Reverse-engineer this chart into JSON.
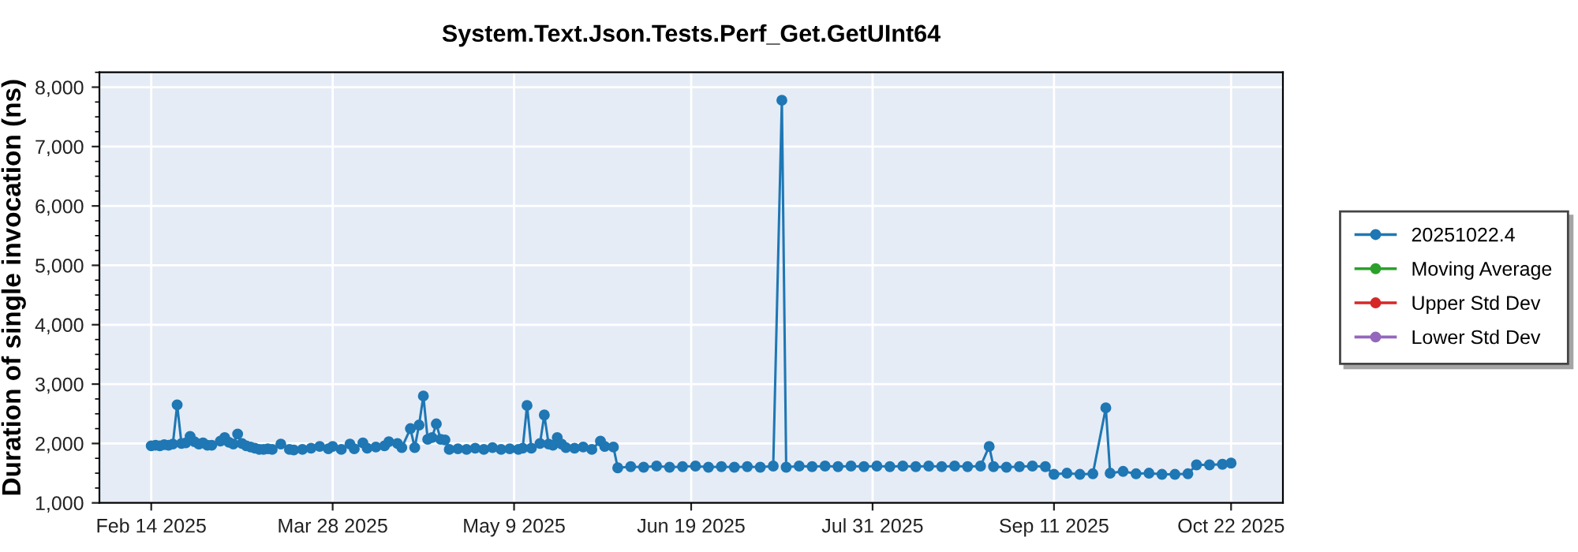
{
  "chart_data": {
    "type": "line",
    "title": "System.Text.Json.Tests.Perf_Get.GetUInt64",
    "ylabel": "Duration of single invocation (ns)",
    "x": [
      "2025-02-14",
      "2025-02-15",
      "2025-02-16",
      "2025-02-17",
      "2025-02-18",
      "2025-02-19",
      "2025-02-20",
      "2025-02-21",
      "2025-02-22",
      "2025-02-23",
      "2025-02-24",
      "2025-02-25",
      "2025-02-26",
      "2025-02-27",
      "2025-02-28",
      "2025-03-02",
      "2025-03-03",
      "2025-03-04",
      "2025-03-05",
      "2025-03-06",
      "2025-03-07",
      "2025-03-08",
      "2025-03-09",
      "2025-03-10",
      "2025-03-11",
      "2025-03-12",
      "2025-03-13",
      "2025-03-14",
      "2025-03-16",
      "2025-03-18",
      "2025-03-19",
      "2025-03-21",
      "2025-03-23",
      "2025-03-25",
      "2025-03-27",
      "2025-03-28",
      "2025-03-30",
      "2025-04-01",
      "2025-04-02",
      "2025-04-04",
      "2025-04-05",
      "2025-04-07",
      "2025-04-09",
      "2025-04-10",
      "2025-04-12",
      "2025-04-13",
      "2025-04-15",
      "2025-04-16",
      "2025-04-17",
      "2025-04-18",
      "2025-04-19",
      "2025-04-20",
      "2025-04-21",
      "2025-04-22",
      "2025-04-23",
      "2025-04-24",
      "2025-04-26",
      "2025-04-28",
      "2025-04-30",
      "2025-05-02",
      "2025-05-04",
      "2025-05-06",
      "2025-05-08",
      "2025-05-10",
      "2025-05-11",
      "2025-05-12",
      "2025-05-13",
      "2025-05-15",
      "2025-05-16",
      "2025-05-17",
      "2025-05-18",
      "2025-05-19",
      "2025-05-20",
      "2025-05-21",
      "2025-05-23",
      "2025-05-25",
      "2025-05-27",
      "2025-05-29",
      "2025-05-30",
      "2025-06-01",
      "2025-06-02",
      "2025-06-05",
      "2025-06-08",
      "2025-06-11",
      "2025-06-14",
      "2025-06-17",
      "2025-06-20",
      "2025-06-23",
      "2025-06-26",
      "2025-06-29",
      "2025-07-02",
      "2025-07-05",
      "2025-07-08",
      "2025-07-10",
      "2025-07-11",
      "2025-07-14",
      "2025-07-17",
      "2025-07-20",
      "2025-07-23",
      "2025-07-26",
      "2025-07-29",
      "2025-08-01",
      "2025-08-04",
      "2025-08-07",
      "2025-08-10",
      "2025-08-13",
      "2025-08-16",
      "2025-08-19",
      "2025-08-22",
      "2025-08-25",
      "2025-08-27",
      "2025-08-28",
      "2025-08-31",
      "2025-09-03",
      "2025-09-06",
      "2025-09-09",
      "2025-09-11",
      "2025-09-14",
      "2025-09-17",
      "2025-09-20",
      "2025-09-23",
      "2025-09-24",
      "2025-09-27",
      "2025-09-30",
      "2025-10-03",
      "2025-10-06",
      "2025-10-09",
      "2025-10-12",
      "2025-10-14",
      "2025-10-17",
      "2025-10-20",
      "2025-10-22"
    ],
    "series": [
      {
        "name": "20251022.4",
        "color": "#1f77b4",
        "values": [
          1960,
          1970,
          1960,
          1980,
          1970,
          1990,
          2650,
          2000,
          2010,
          2120,
          2030,
          1990,
          2010,
          1970,
          1970,
          2040,
          2100,
          2020,
          1990,
          2160,
          2000,
          1960,
          1940,
          1920,
          1900,
          1900,
          1910,
          1900,
          1990,
          1900,
          1890,
          1900,
          1920,
          1950,
          1910,
          1950,
          1900,
          1990,
          1910,
          2010,
          1920,
          1940,
          1960,
          2030,
          2000,
          1930,
          2250,
          1930,
          2310,
          2800,
          2070,
          2100,
          2330,
          2070,
          2060,
          1900,
          1910,
          1900,
          1920,
          1900,
          1930,
          1900,
          1910,
          1900,
          1920,
          2640,
          1920,
          2000,
          2480,
          1990,
          1970,
          2100,
          1990,
          1930,
          1920,
          1940,
          1900,
          2040,
          1950,
          1940,
          1590,
          1610,
          1600,
          1620,
          1600,
          1610,
          1620,
          1600,
          1610,
          1600,
          1610,
          1600,
          1620,
          7780,
          1600,
          1620,
          1610,
          1620,
          1610,
          1620,
          1610,
          1620,
          1610,
          1620,
          1610,
          1620,
          1610,
          1620,
          1610,
          1620,
          1950,
          1610,
          1600,
          1610,
          1620,
          1610,
          1480,
          1500,
          1480,
          1490,
          2600,
          1500,
          1530,
          1490,
          1500,
          1480,
          1480,
          1490,
          1640,
          1640,
          1650,
          1670
        ]
      },
      {
        "name": "Moving Average",
        "color": "#2ca02c",
        "values": [
          null,
          null,
          null,
          null,
          null,
          null,
          null,
          null,
          null,
          null,
          null,
          null,
          null,
          null,
          null,
          null,
          null,
          null,
          null,
          null,
          null,
          null,
          null,
          null,
          null,
          null,
          null,
          null,
          null,
          null,
          null,
          null,
          null,
          null,
          null,
          null,
          null,
          null,
          null,
          null,
          null,
          null,
          null,
          null,
          null,
          null,
          null,
          null,
          null,
          null,
          null,
          null,
          null,
          null,
          null,
          null,
          null,
          null,
          null,
          null,
          null,
          null,
          null,
          null,
          null,
          null,
          null,
          null,
          null,
          null,
          null,
          null,
          null,
          null,
          null,
          null,
          null,
          null,
          null,
          null,
          null,
          null,
          null,
          null,
          null,
          null,
          null,
          null,
          null,
          null,
          null,
          null,
          null,
          null,
          null,
          null,
          null,
          null,
          null,
          null,
          null,
          null,
          null,
          null,
          null,
          null,
          null,
          null,
          null,
          null,
          null,
          null,
          null,
          null,
          null,
          null,
          null,
          null,
          null,
          null,
          null,
          null,
          null,
          null,
          null,
          null,
          null,
          null,
          null,
          null,
          null,
          null
        ]
      },
      {
        "name": "Upper Std Dev",
        "color": "#d62728",
        "values": [
          null,
          null,
          null,
          null,
          null,
          null,
          null,
          null,
          null,
          null,
          null,
          null,
          null,
          null,
          null,
          null,
          null,
          null,
          null,
          null,
          null,
          null,
          null,
          null,
          null,
          null,
          null,
          null,
          null,
          null,
          null,
          null,
          null,
          null,
          null,
          null,
          null,
          null,
          null,
          null,
          null,
          null,
          null,
          null,
          null,
          null,
          null,
          null,
          null,
          null,
          null,
          null,
          null,
          null,
          null,
          null,
          null,
          null,
          null,
          null,
          null,
          null,
          null,
          null,
          null,
          null,
          null,
          null,
          null,
          null,
          null,
          null,
          null,
          null,
          null,
          null,
          null,
          null,
          null,
          null,
          null,
          null,
          null,
          null,
          null,
          null,
          null,
          null,
          null,
          null,
          null,
          null,
          null,
          null,
          null,
          null,
          null,
          null,
          null,
          null,
          null,
          null,
          null,
          null,
          null,
          null,
          null,
          null,
          null,
          null,
          null,
          null,
          null,
          null,
          null,
          null,
          null,
          null,
          null,
          null,
          null,
          null,
          null,
          null,
          null,
          null,
          null,
          null,
          null,
          null,
          null,
          null
        ]
      },
      {
        "name": "Lower Std Dev",
        "color": "#9467bd",
        "values": [
          null,
          null,
          null,
          null,
          null,
          null,
          null,
          null,
          null,
          null,
          null,
          null,
          null,
          null,
          null,
          null,
          null,
          null,
          null,
          null,
          null,
          null,
          null,
          null,
          null,
          null,
          null,
          null,
          null,
          null,
          null,
          null,
          null,
          null,
          null,
          null,
          null,
          null,
          null,
          null,
          null,
          null,
          null,
          null,
          null,
          null,
          null,
          null,
          null,
          null,
          null,
          null,
          null,
          null,
          null,
          null,
          null,
          null,
          null,
          null,
          null,
          null,
          null,
          null,
          null,
          null,
          null,
          null,
          null,
          null,
          null,
          null,
          null,
          null,
          null,
          null,
          null,
          null,
          null,
          null,
          null,
          null,
          null,
          null,
          null,
          null,
          null,
          null,
          null,
          null,
          null,
          null,
          null,
          null,
          null,
          null,
          null,
          null,
          null,
          null,
          null,
          null,
          null,
          null,
          null,
          null,
          null,
          null,
          null,
          null,
          null,
          null,
          null,
          null,
          null,
          null,
          null,
          null,
          null,
          null,
          null,
          null,
          null,
          null,
          null,
          null,
          null,
          null,
          null,
          null,
          null,
          null
        ]
      }
    ],
    "xlim": [
      "2025-02-02",
      "2025-11-03"
    ],
    "xticks": [
      {
        "value": "2025-02-14",
        "label": "Feb 14 2025"
      },
      {
        "value": "2025-03-28",
        "label": "Mar 28 2025"
      },
      {
        "value": "2025-05-09",
        "label": "May 9 2025"
      },
      {
        "value": "2025-06-19",
        "label": "Jun 19 2025"
      },
      {
        "value": "2025-07-31",
        "label": "Jul 31 2025"
      },
      {
        "value": "2025-09-11",
        "label": "Sep 11 2025"
      },
      {
        "value": "2025-10-22",
        "label": "Oct 22 2025"
      }
    ],
    "ylim": [
      1000,
      8250
    ],
    "yticks": [
      {
        "value": 1000,
        "label": "1,000"
      },
      {
        "value": 2000,
        "label": "2,000"
      },
      {
        "value": 3000,
        "label": "3,000"
      },
      {
        "value": 4000,
        "label": "4,000"
      },
      {
        "value": 5000,
        "label": "5,000"
      },
      {
        "value": 6000,
        "label": "6,000"
      },
      {
        "value": 7000,
        "label": "7,000"
      },
      {
        "value": 8000,
        "label": "8,000"
      }
    ],
    "grid": true,
    "legend": "right",
    "marker": "circle",
    "line_style": "solid"
  }
}
